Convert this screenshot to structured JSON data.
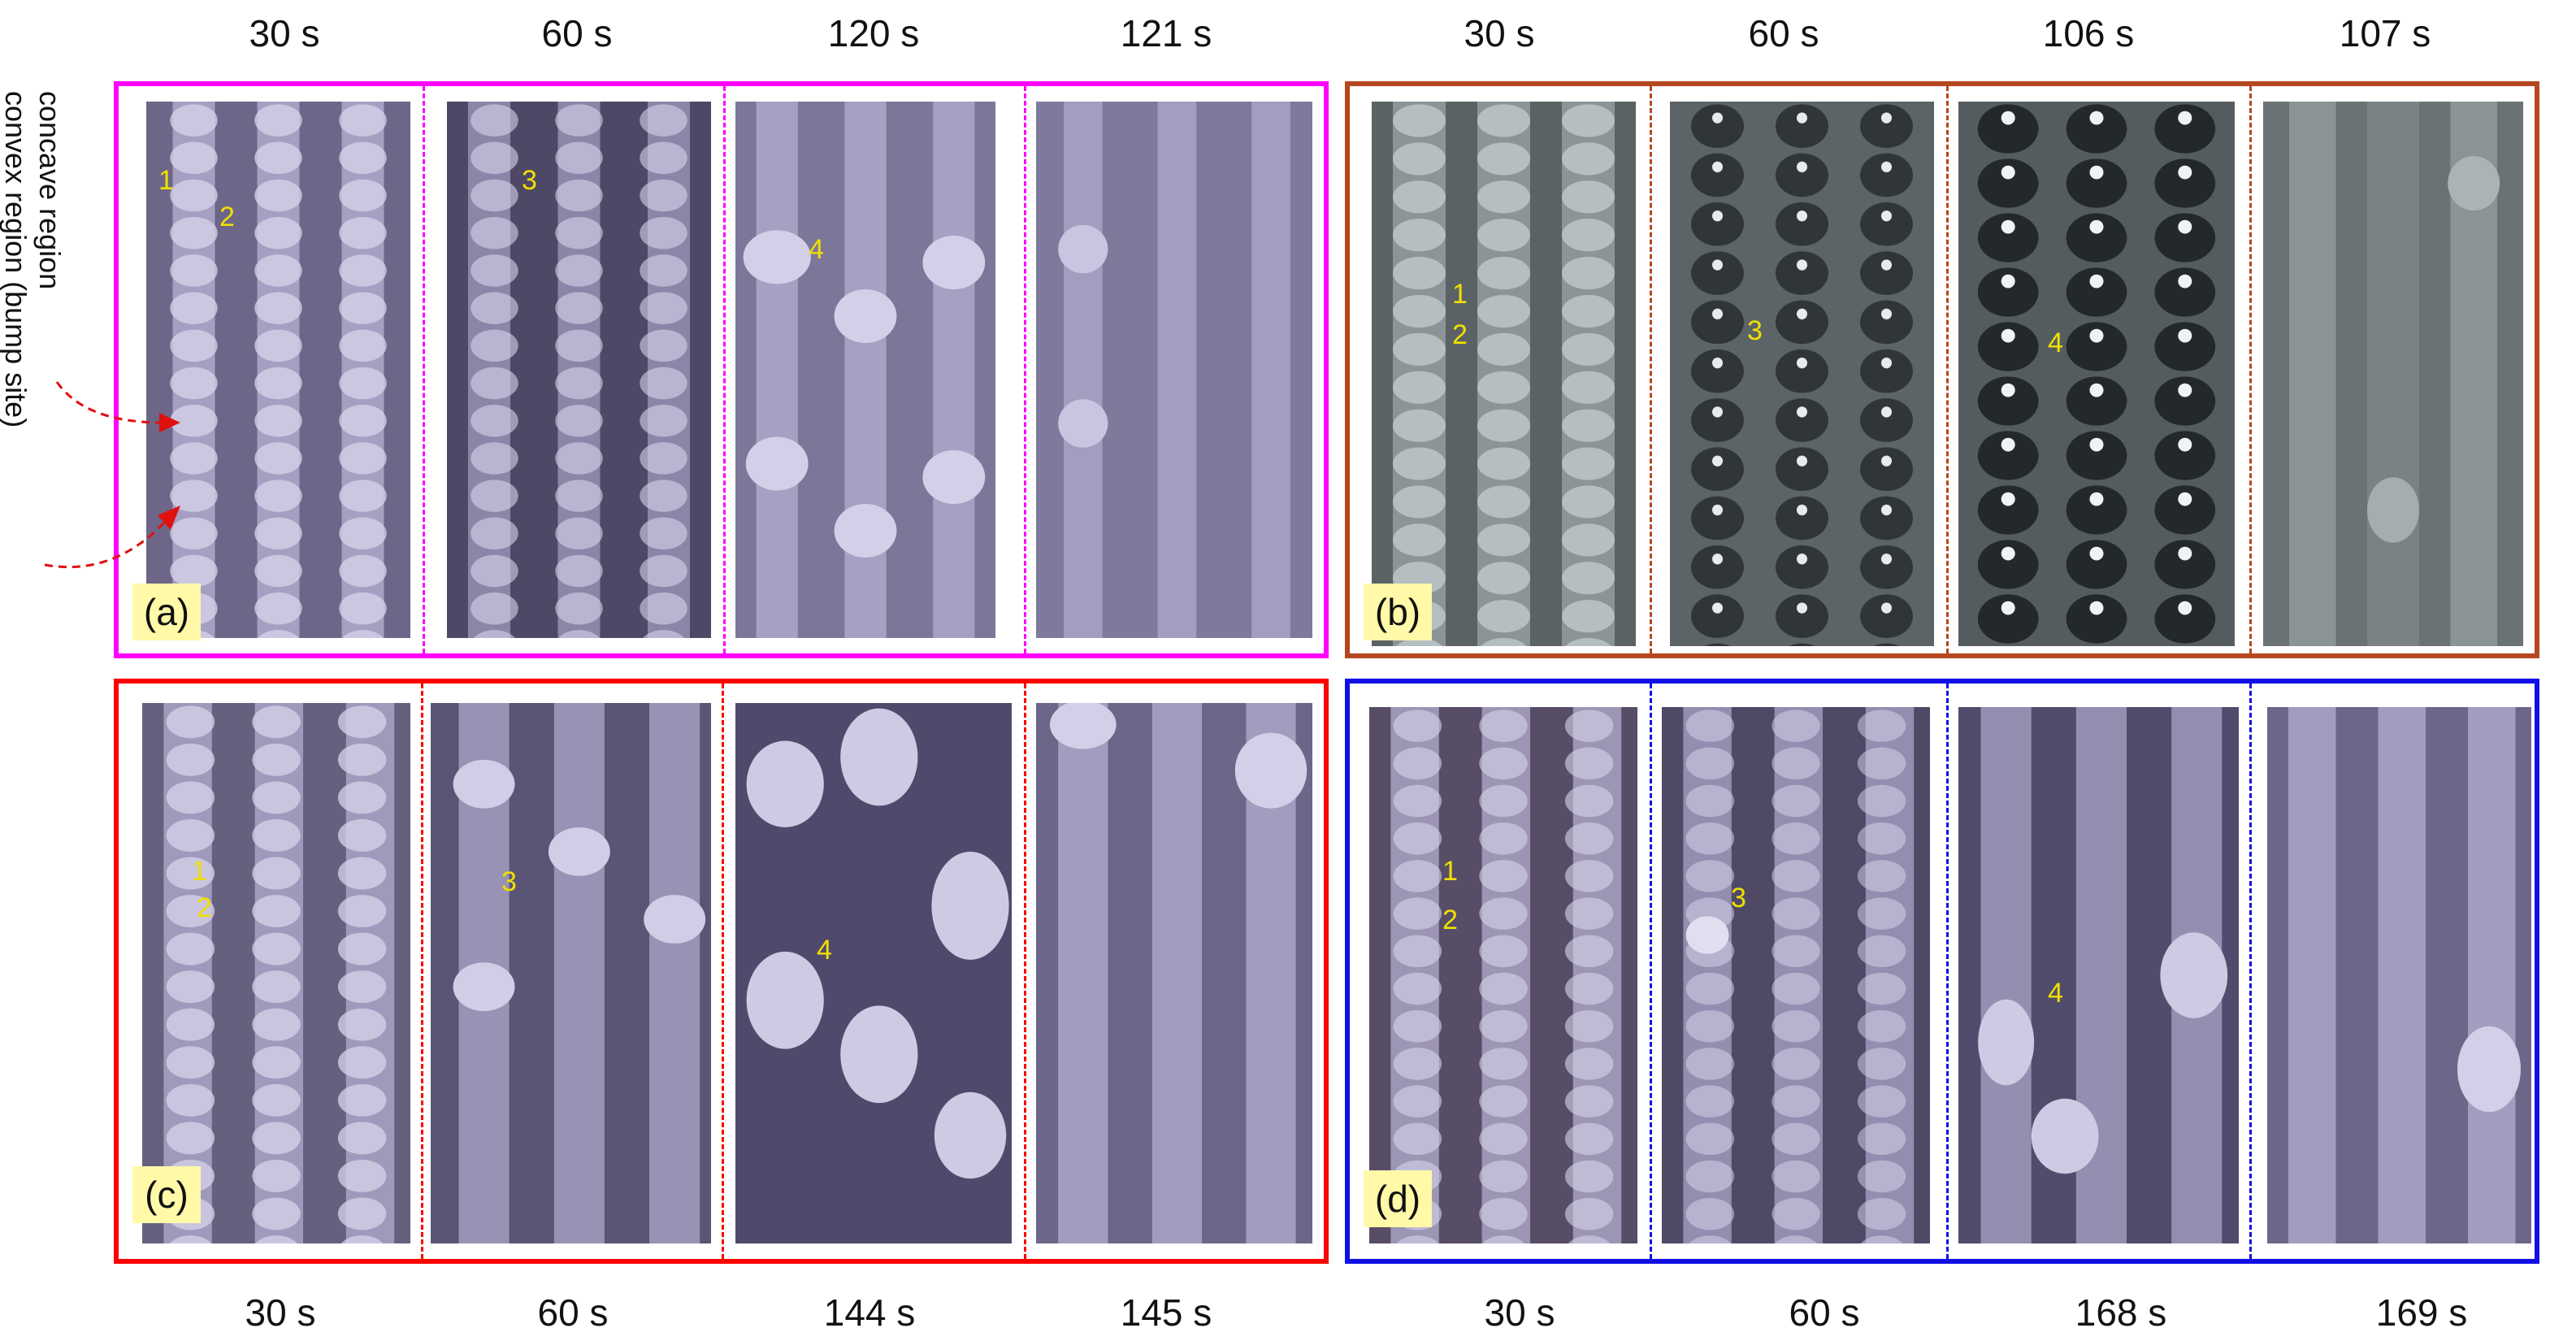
{
  "panels": [
    {
      "id": "a",
      "label": "(a)",
      "color": "#ff00ff",
      "times": [
        "30 s",
        "60 s",
        "120 s",
        "121 s"
      ]
    },
    {
      "id": "b",
      "label": "(b)",
      "color": "#b5461f",
      "times": [
        "30 s",
        "60 s",
        "106 s",
        "107 s"
      ]
    },
    {
      "id": "c",
      "label": "(c)",
      "color": "#ff0000",
      "times": [
        "30 s",
        "60 s",
        "144 s",
        "145 s"
      ]
    },
    {
      "id": "d",
      "label": "(d)",
      "color": "#1010e6",
      "times": [
        "30 s",
        "60 s",
        "168 s",
        "169 s"
      ]
    }
  ],
  "side_labels": {
    "concave": "concave region",
    "convex": "convex region (bump site)"
  },
  "markers": [
    "1",
    "2",
    "3",
    "4"
  ]
}
